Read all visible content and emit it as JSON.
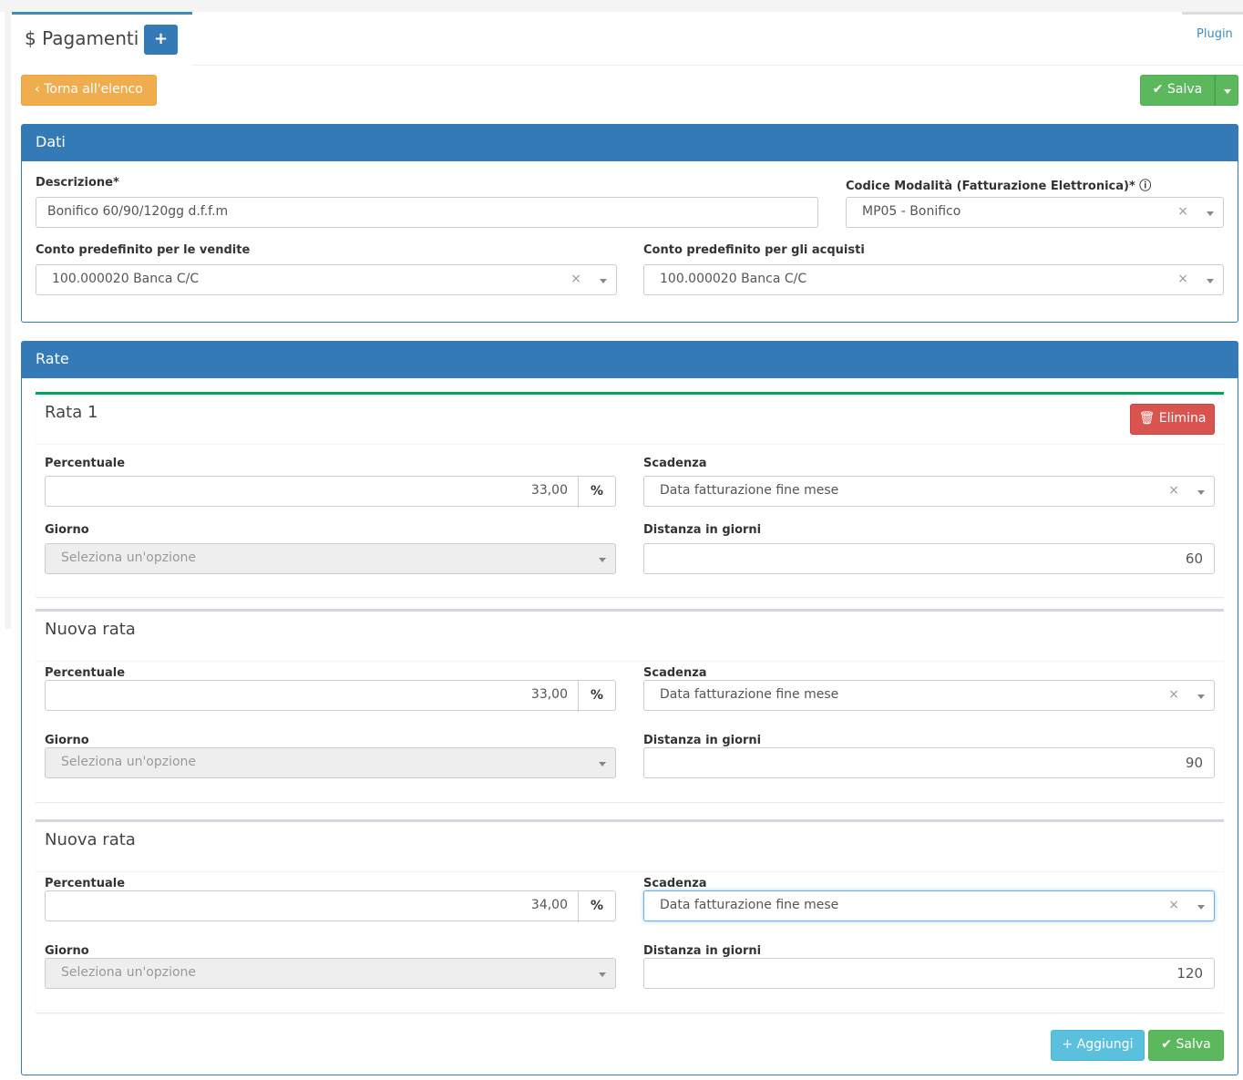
{
  "header": {
    "title": "$ Pagamenti",
    "add_label": "+",
    "plugin_tab": "Plugin"
  },
  "toolbar": {
    "back_label": "‹ Torna all'elenco",
    "save_label": "✔ Salva"
  },
  "dati": {
    "title": "Dati",
    "descrizione_label": "Descrizione*",
    "descrizione_value": "Bonifico 60/90/120gg d.f.f.m",
    "codice_label": "Codice Modalità (Fatturazione Elettronica)* ⓘ",
    "codice_value": "MP05 - Bonifico",
    "vendite_label": "Conto predefinito per le vendite",
    "vendite_value": "100.000020 Banca C/C",
    "acquisti_label": "Conto predefinito per gli acquisti",
    "acquisti_value": "100.000020 Banca C/C"
  },
  "rate": {
    "title": "Rate",
    "delete_label": "🗑 Elimina",
    "labels": {
      "percentuale": "Percentuale",
      "scadenza": "Scadenza",
      "giorno": "Giorno",
      "distanza": "Distanza in giorni",
      "percent_symbol": "%"
    },
    "items": [
      {
        "title": "Rata 1",
        "percentuale": "33,00",
        "scadenza": "Data fatturazione fine mese",
        "giorno_placeholder": "Seleziona un'opzione",
        "distanza": "60"
      },
      {
        "title": "Nuova rata",
        "percentuale": "33,00",
        "scadenza": "Data fatturazione fine mese",
        "giorno_placeholder": "Seleziona un'opzione",
        "distanza": "90"
      },
      {
        "title": "Nuova rata",
        "percentuale": "34,00",
        "scadenza": "Data fatturazione fine mese",
        "giorno_placeholder": "Seleziona un'opzione",
        "distanza": "120"
      }
    ],
    "add_label": "+ Aggiungi",
    "save_label": "✔ Salva"
  },
  "colors": {
    "primary": "#337ab7",
    "success": "#5cb85c",
    "warning": "#f0ad4e",
    "danger": "#d9534f",
    "info": "#5bc0de"
  }
}
